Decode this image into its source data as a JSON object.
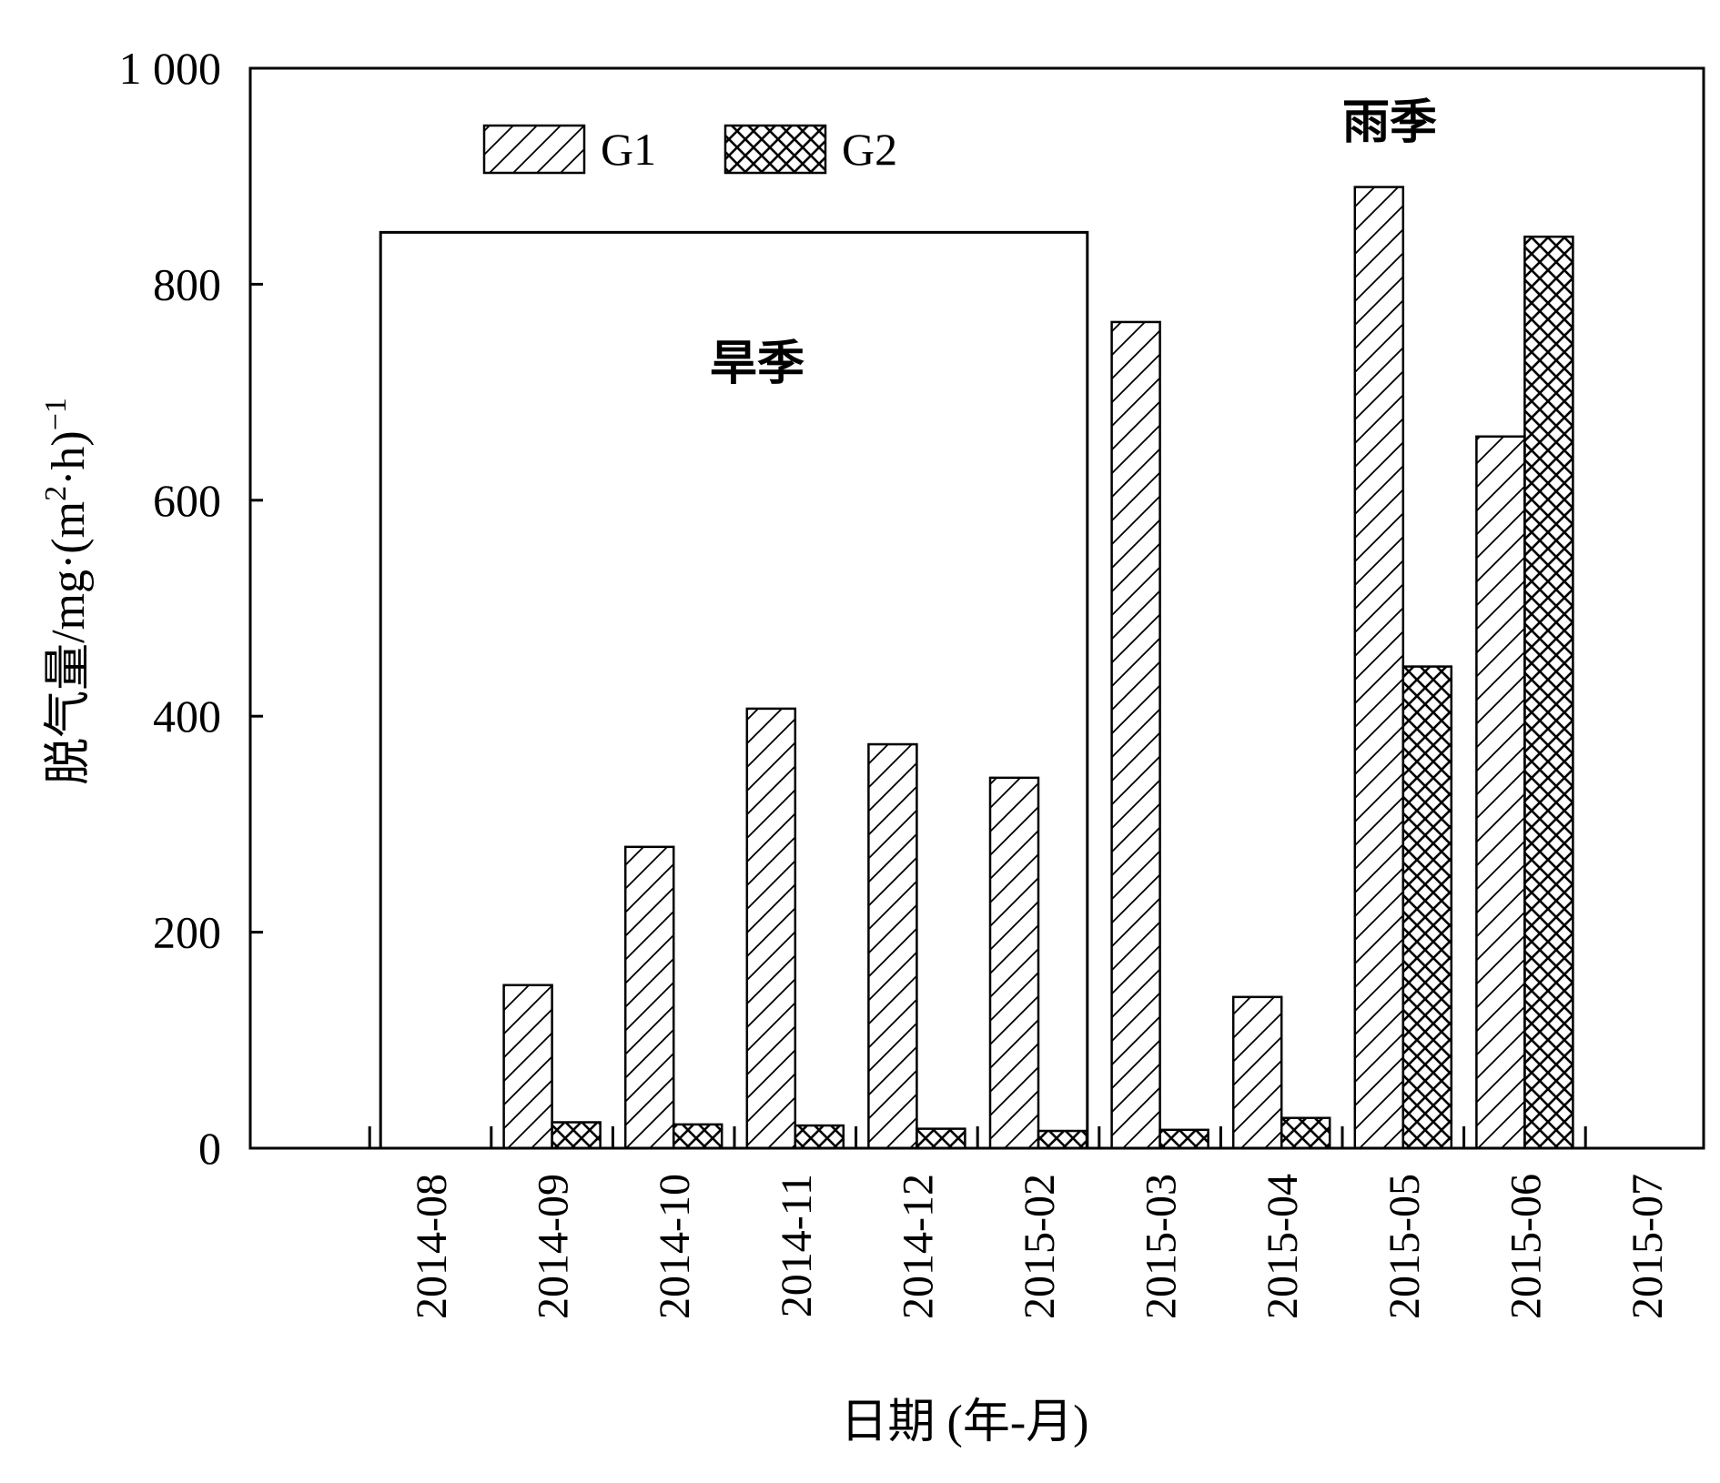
{
  "chart_data": {
    "type": "bar",
    "xlabel": "日期 (年-月)",
    "ylabel_main": "脱气量/mg·(m",
    "ylabel_sup1": "2",
    "ylabel_mid": "·h)",
    "ylabel_sup2": "−1",
    "ylim": [
      0,
      1000
    ],
    "yticks": [
      0,
      200,
      400,
      600,
      800,
      1000
    ],
    "ytick_labels": [
      "0",
      "200",
      "400",
      "600",
      "800",
      "1 000"
    ],
    "categories": [
      "2014-08",
      "2014-09",
      "2014-10",
      "2014-11",
      "2014-12",
      "2015-02",
      "2015-03",
      "2015-04",
      "2015-05",
      "2015-06",
      "2015-07"
    ],
    "series": [
      {
        "name": "G1",
        "pattern": "diagonal-hatch",
        "values": [
          0,
          151,
          279,
          407,
          374,
          343,
          765,
          140,
          890,
          659,
          0
        ]
      },
      {
        "name": "G2",
        "pattern": "cross-hatch",
        "values": [
          0,
          24,
          22,
          21,
          18,
          16,
          17,
          28,
          446,
          844,
          0
        ]
      }
    ],
    "legend_position": "top-left",
    "grid": false,
    "annotations": [
      {
        "text": "旱季",
        "region": "dry-season",
        "start_category": "2014-08",
        "end_category": "2015-02",
        "top_value": 848
      },
      {
        "text": "雨季",
        "region": "rainy-season",
        "start_category": "2015-03",
        "end_category": "2015-07"
      }
    ]
  }
}
